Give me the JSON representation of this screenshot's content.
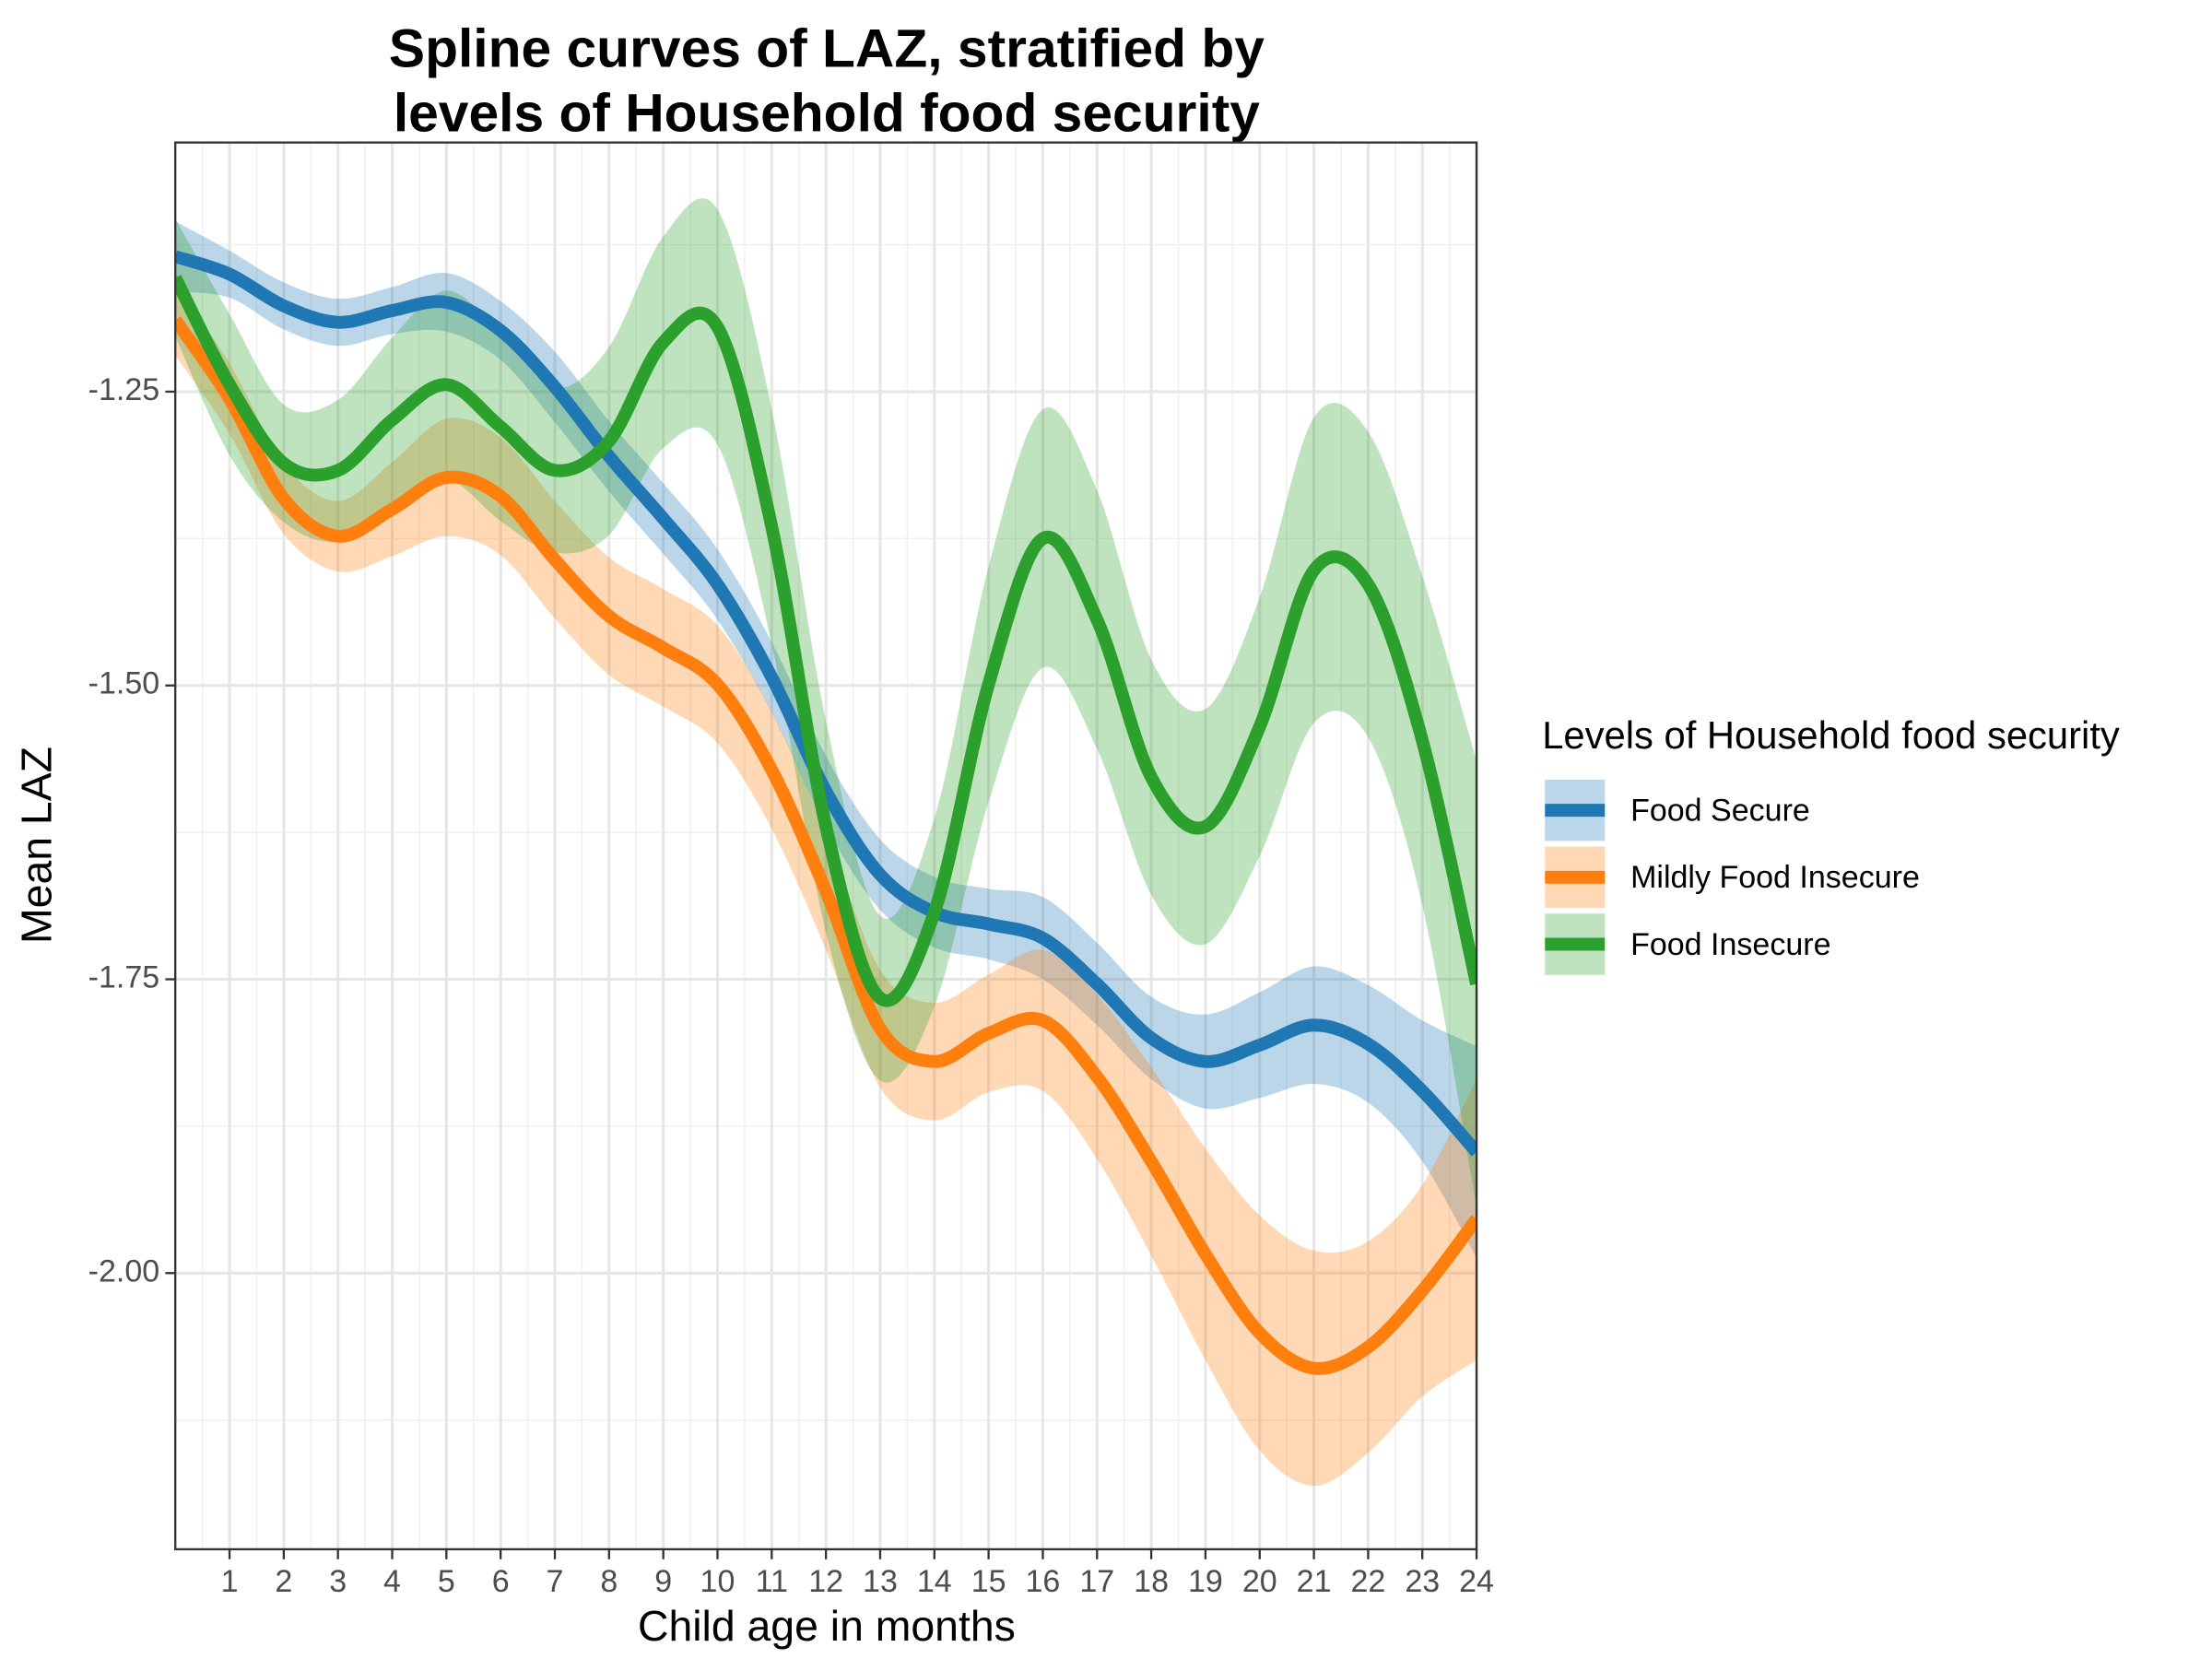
{
  "chart_data": {
    "type": "line",
    "title": [
      "Spline curves of LAZ, stratified by",
      "levels of Household food security"
    ],
    "x_label": "Child age in months",
    "y_label": "Mean LAZ",
    "legend_title": "Levels of Household food security",
    "legend_position": "right",
    "grid": true,
    "x": [
      0,
      1,
      2,
      3,
      4,
      5,
      6,
      7,
      8,
      9,
      10,
      11,
      12,
      13,
      14,
      15,
      16,
      17,
      18,
      19,
      20,
      21,
      22,
      23,
      24
    ],
    "xlim": [
      0,
      24
    ],
    "xticks": [
      1,
      2,
      3,
      4,
      5,
      6,
      7,
      8,
      9,
      10,
      11,
      12,
      13,
      14,
      15,
      16,
      17,
      18,
      19,
      20,
      21,
      22,
      23,
      24
    ],
    "ylim": [
      -2.235,
      -1.038
    ],
    "yticks": [
      -1.25,
      {
        "value": -1.5,
        "label": "-1.50"
      },
      {
        "value": -1.75,
        "label": "-1.75"
      },
      {
        "value": -2.0,
        "label": "-2.00"
      }
    ],
    "series": [
      {
        "name": "Food Secure",
        "color": "#1f77b4",
        "values": [
          -1.135,
          -1.15,
          -1.177,
          -1.191,
          -1.181,
          -1.174,
          -1.198,
          -1.246,
          -1.305,
          -1.358,
          -1.414,
          -1.493,
          -1.59,
          -1.661,
          -1.693,
          -1.703,
          -1.715,
          -1.754,
          -1.8,
          -1.82,
          -1.806,
          -1.789,
          -1.805,
          -1.845,
          -1.897
        ],
        "upper": [
          -1.105,
          -1.13,
          -1.157,
          -1.171,
          -1.161,
          -1.149,
          -1.173,
          -1.216,
          -1.275,
          -1.328,
          -1.384,
          -1.463,
          -1.56,
          -1.631,
          -1.663,
          -1.673,
          -1.68,
          -1.719,
          -1.765,
          -1.78,
          -1.761,
          -1.739,
          -1.755,
          -1.785,
          -1.807
        ],
        "lower": [
          -1.165,
          -1.17,
          -1.197,
          -1.211,
          -1.201,
          -1.199,
          -1.223,
          -1.276,
          -1.335,
          -1.388,
          -1.444,
          -1.523,
          -1.62,
          -1.691,
          -1.723,
          -1.733,
          -1.75,
          -1.789,
          -1.835,
          -1.86,
          -1.851,
          -1.839,
          -1.855,
          -1.905,
          -1.987
        ]
      },
      {
        "name": "Mildly Food Insecure",
        "color": "#ff7f0e",
        "values": [
          -1.189,
          -1.256,
          -1.341,
          -1.373,
          -1.35,
          -1.323,
          -1.339,
          -1.393,
          -1.441,
          -1.468,
          -1.499,
          -1.572,
          -1.675,
          -1.792,
          -1.82,
          -1.796,
          -1.785,
          -1.833,
          -1.905,
          -1.984,
          -2.051,
          -2.081,
          -2.063,
          -2.015,
          -1.954
        ],
        "upper": [
          -1.159,
          -1.226,
          -1.311,
          -1.343,
          -1.31,
          -1.273,
          -1.289,
          -1.343,
          -1.391,
          -1.418,
          -1.449,
          -1.522,
          -1.625,
          -1.742,
          -1.77,
          -1.746,
          -1.725,
          -1.763,
          -1.825,
          -1.894,
          -1.951,
          -1.981,
          -1.973,
          -1.925,
          -1.834
        ],
        "lower": [
          -1.219,
          -1.286,
          -1.371,
          -1.403,
          -1.39,
          -1.373,
          -1.389,
          -1.443,
          -1.491,
          -1.518,
          -1.549,
          -1.622,
          -1.725,
          -1.842,
          -1.87,
          -1.846,
          -1.845,
          -1.903,
          -1.985,
          -2.074,
          -2.151,
          -2.181,
          -2.153,
          -2.105,
          -2.074
        ]
      },
      {
        "name": "Food Insecure",
        "color": "#2ca02c",
        "values": [
          -1.153,
          -1.244,
          -1.311,
          -1.317,
          -1.274,
          -1.244,
          -1.28,
          -1.317,
          -1.292,
          -1.208,
          -1.195,
          -1.365,
          -1.62,
          -1.766,
          -1.693,
          -1.499,
          -1.375,
          -1.444,
          -1.578,
          -1.62,
          -1.535,
          -1.402,
          -1.414,
          -1.547,
          -1.754
        ],
        "upper": [
          -1.103,
          -1.184,
          -1.261,
          -1.257,
          -1.204,
          -1.164,
          -1.2,
          -1.247,
          -1.212,
          -1.118,
          -1.095,
          -1.265,
          -1.53,
          -1.696,
          -1.613,
          -1.399,
          -1.265,
          -1.334,
          -1.478,
          -1.52,
          -1.425,
          -1.272,
          -1.284,
          -1.407,
          -1.564
        ],
        "lower": [
          -1.203,
          -1.304,
          -1.361,
          -1.377,
          -1.344,
          -1.324,
          -1.36,
          -1.387,
          -1.372,
          -1.298,
          -1.295,
          -1.465,
          -1.71,
          -1.836,
          -1.773,
          -1.599,
          -1.485,
          -1.554,
          -1.678,
          -1.72,
          -1.645,
          -1.532,
          -1.544,
          -1.687,
          -1.944
        ]
      }
    ]
  }
}
